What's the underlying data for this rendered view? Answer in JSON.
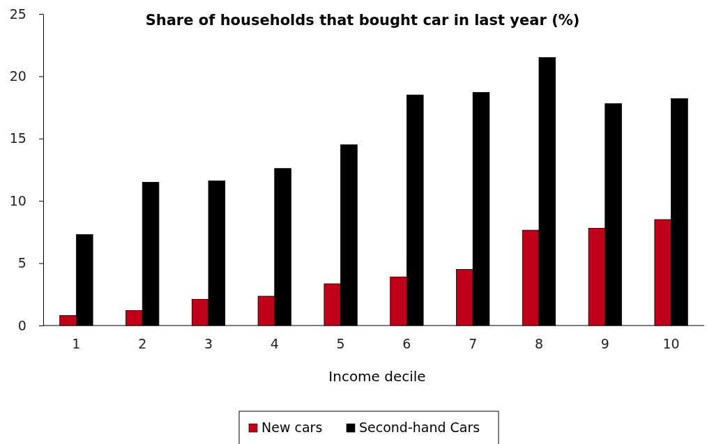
{
  "chart_data": {
    "type": "bar",
    "title": "Share of households that bought car in last year (%)",
    "xlabel": "Income decile",
    "categories": [
      "1",
      "2",
      "3",
      "4",
      "5",
      "6",
      "7",
      "8",
      "9",
      "10"
    ],
    "series": [
      {
        "name": "New cars",
        "color": "#c00018",
        "values": [
          0.8,
          1.2,
          2.1,
          2.35,
          3.35,
          3.9,
          4.5,
          7.65,
          7.8,
          8.5
        ]
      },
      {
        "name": "Second-hand Cars",
        "color": "#000000",
        "values": [
          7.3,
          11.5,
          11.6,
          12.6,
          14.5,
          18.5,
          18.7,
          21.5,
          17.8,
          18.2
        ]
      }
    ],
    "ylim": [
      0,
      25
    ],
    "yticks": [
      0,
      5,
      10,
      15,
      20,
      25
    ],
    "grid": false,
    "legend": "bottom"
  }
}
